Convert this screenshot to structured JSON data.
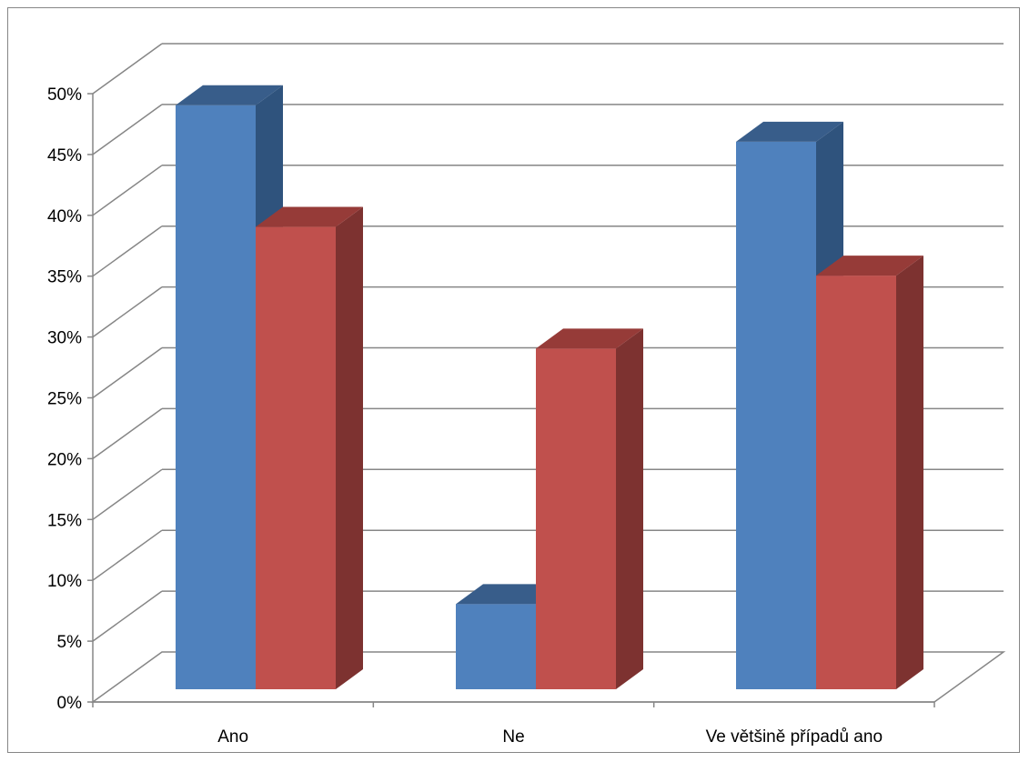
{
  "chart_data": {
    "type": "bar",
    "categories": [
      "Ano",
      "Ne",
      "Ve většině případů ano"
    ],
    "series": [
      {
        "values": [
          48,
          7,
          45
        ],
        "color": "#4F81BD",
        "side_color": "#2F537D",
        "top_color": "#385D8A"
      },
      {
        "values": [
          38,
          28,
          34
        ],
        "color": "#C0504D",
        "side_color": "#7D3230",
        "top_color": "#963B38"
      }
    ],
    "ylim": [
      0,
      50
    ],
    "y_ticks": [
      "0%",
      "5%",
      "10%",
      "15%",
      "20%",
      "25%",
      "30%",
      "35%",
      "40%",
      "45%",
      "50%"
    ],
    "grid": true,
    "legend": "none"
  }
}
